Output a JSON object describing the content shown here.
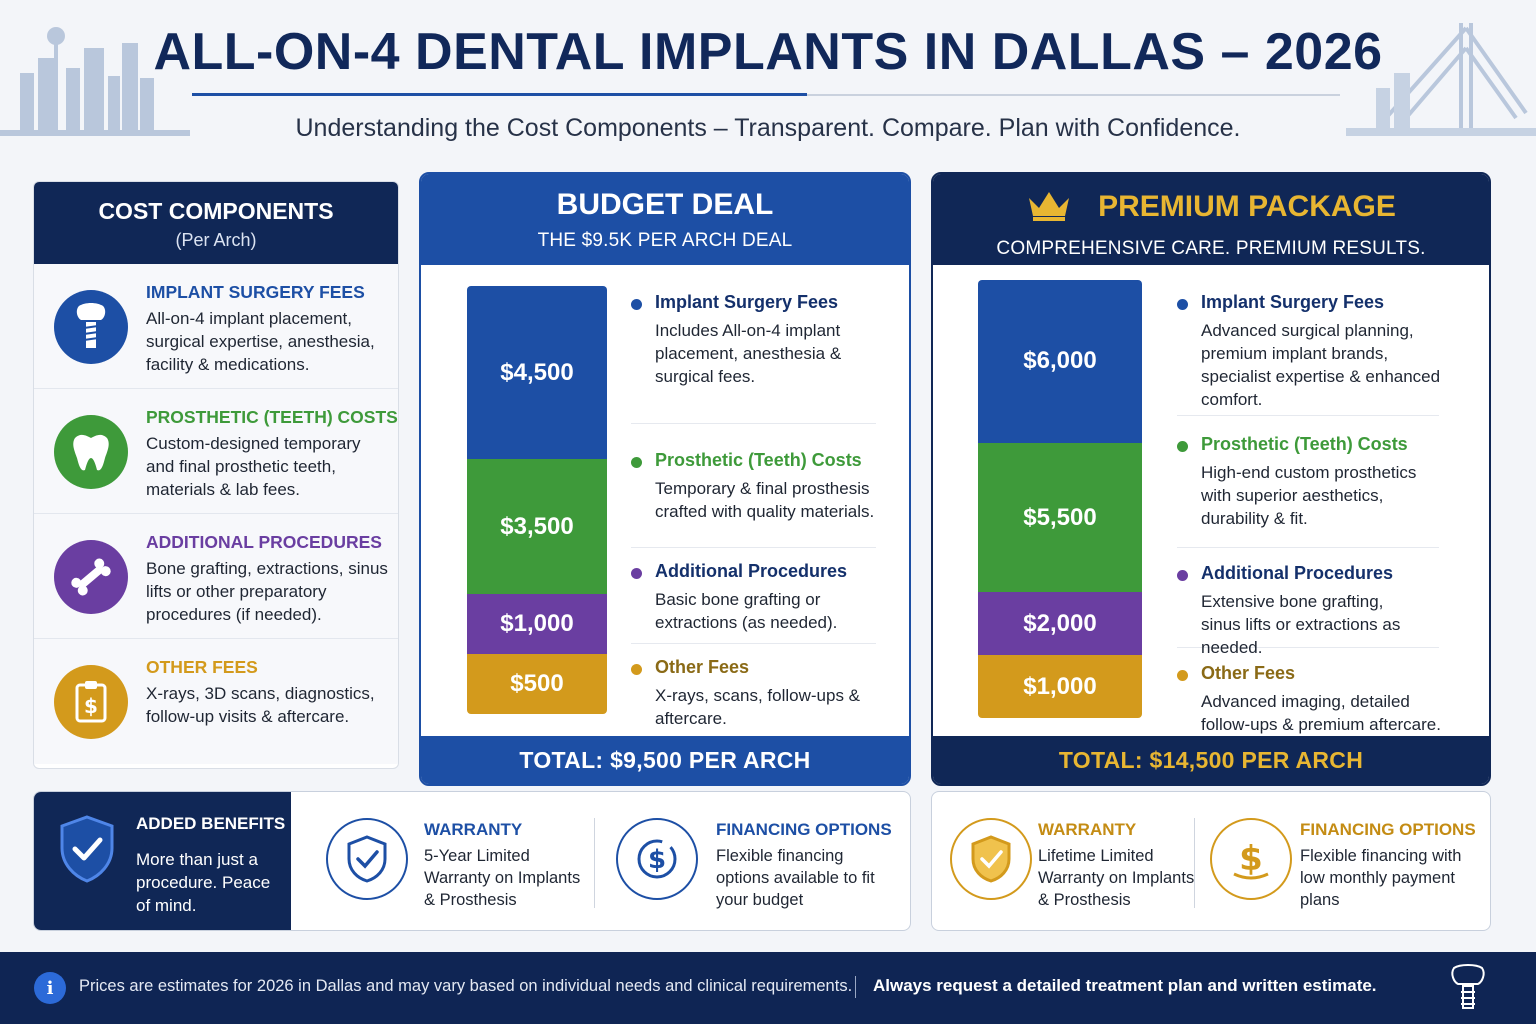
{
  "header": {
    "title": "ALL-ON-4 DENTAL IMPLANTS IN DALLAS – 2026",
    "subtitle": "Understanding the Cost Components – Transparent. Compare. Plan with Confidence."
  },
  "components": {
    "title": "COST COMPONENTS",
    "subtitle": "(Per Arch)",
    "items": [
      {
        "title": "IMPLANT SURGERY FEES",
        "desc": "All-on-4 implant placement, surgical expertise, anesthesia, facility & medications.",
        "color": "#1d4fa5",
        "icon": "implant-icon"
      },
      {
        "title": "PROSTHETIC (TEETH) COSTS",
        "desc": "Custom-designed temporary and final prosthetic teeth, materials & lab fees.",
        "color": "#3e9a3a",
        "icon": "tooth-icon"
      },
      {
        "title": "ADDITIONAL PROCEDURES",
        "desc": "Bone grafting, extractions, sinus lifts or other preparatory procedures (if needed).",
        "color": "#6a3ea1",
        "icon": "bone-icon"
      },
      {
        "title": "OTHER FEES",
        "desc": "X-rays, 3D scans, diagnostics, follow-up visits & aftercare.",
        "color": "#d39a1c",
        "icon": "clipboard-icon"
      }
    ]
  },
  "budget": {
    "title": "BUDGET DEAL",
    "subtitle": "THE $9.5K PER ARCH DEAL",
    "segments": [
      {
        "label": "$4,500",
        "value": 4500,
        "color": "#1d4fa5"
      },
      {
        "label": "$3,500",
        "value": 3500,
        "color": "#3e9a3a"
      },
      {
        "label": "$1,000",
        "value": 1000,
        "color": "#6a3ea1"
      },
      {
        "label": "$500",
        "value": 500,
        "color": "#d39a1c"
      }
    ],
    "items": [
      {
        "title": "Implant Surgery Fees",
        "desc": "Includes All-on-4 implant placement, anesthesia & surgical fees."
      },
      {
        "title": "Prosthetic (Teeth) Costs",
        "desc": "Temporary & final prosthesis crafted with quality materials."
      },
      {
        "title": "Additional Procedures",
        "desc": "Basic bone grafting or extractions (as needed)."
      },
      {
        "title": "Other Fees",
        "desc": "X-rays, scans, follow-ups & aftercare."
      }
    ],
    "total": "TOTAL: $9,500 PER ARCH"
  },
  "premium": {
    "title": "PREMIUM PACKAGE",
    "subtitle": "COMPREHENSIVE CARE. PREMIUM RESULTS.",
    "segments": [
      {
        "label": "$6,000",
        "value": 6000,
        "color": "#1d4fa5"
      },
      {
        "label": "$5,500",
        "value": 5500,
        "color": "#3e9a3a"
      },
      {
        "label": "$2,000",
        "value": 2000,
        "color": "#6a3ea1"
      },
      {
        "label": "$1,000",
        "value": 1000,
        "color": "#d39a1c"
      }
    ],
    "items": [
      {
        "title": "Implant Surgery Fees",
        "desc": "Advanced surgical planning, premium implant brands, specialist expertise & enhanced comfort."
      },
      {
        "title": "Prosthetic (Teeth) Costs",
        "desc": "High-end custom prosthetics with superior aesthetics, durability & fit."
      },
      {
        "title": "Additional Procedures",
        "desc": "Extensive bone grafting, sinus lifts or extractions as needed."
      },
      {
        "title": "Other Fees",
        "desc": "Advanced imaging, detailed follow-ups & premium aftercare."
      }
    ],
    "total": "TOTAL: $14,500 PER ARCH"
  },
  "benefits": {
    "added_title": "ADDED BENEFITS",
    "added_desc": "More than just a procedure. Peace of mind.",
    "budget_warranty_title": "WARRANTY",
    "budget_warranty_desc": "5-Year Limited Warranty on Implants & Prosthesis",
    "budget_financing_title": "FINANCING OPTIONS",
    "budget_financing_desc": "Flexible financing options available to fit your budget",
    "premium_warranty_title": "WARRANTY",
    "premium_warranty_desc": "Lifetime Limited Warranty on Implants & Prosthesis",
    "premium_financing_title": "FINANCING OPTIONS",
    "premium_financing_desc": "Flexible financing with low monthly payment plans"
  },
  "footer": {
    "note": "Prices are estimates for 2026 in Dallas and may vary based on individual needs and clinical requirements.",
    "emphasis": "Always request a detailed treatment plan and written estimate."
  }
}
